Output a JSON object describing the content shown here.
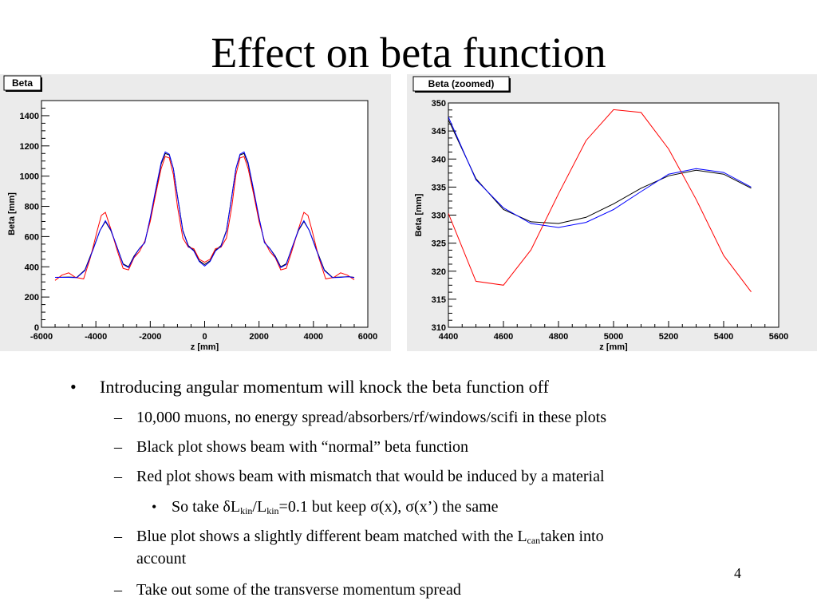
{
  "slide": {
    "title": "Effect on beta function",
    "page_number": "4",
    "bullets": {
      "b1": "Introducing angular momentum will knock the beta function off",
      "b2a": "10,000 muons, no energy spread/absorbers/rf/windows/scifi in these plots",
      "b2b": "Black plot shows beam with “normal” beta function",
      "b2c": "Red plot shows beam with mismatch that would be induced by a material",
      "b3_prefix": "So take δL",
      "b3_sub1": "kin",
      "b3_mid": "/L",
      "b3_sub2": "kin",
      "b3_suffix": "=0.1 but keep σ(x), σ(x’) the same",
      "b2d_prefix": "Blue plot shows a slightly different beam matched with the L",
      "b2d_sub": "can",
      "b2d_suffix": "taken into",
      "b2d_line2": "account",
      "b2e": "Take out some of the transverse momentum spread",
      "marker_round": "•",
      "marker_dash": "–"
    }
  },
  "colors": {
    "black_series": "#000000",
    "red_series": "#ff0000",
    "blue_series": "#0000ff",
    "pad_bg": "#ebebeb"
  },
  "chart_data": [
    {
      "type": "line",
      "title": "Beta",
      "xlabel": "z [mm]",
      "ylabel": "Beta [mm]",
      "xlim": [
        -6000,
        6000
      ],
      "ylim": [
        0,
        1500
      ],
      "xticks": [
        -6000,
        -4000,
        -2000,
        0,
        2000,
        4000,
        6000
      ],
      "yticks": [
        0,
        200,
        400,
        600,
        800,
        1000,
        1200,
        1400
      ],
      "xtick_labels": [
        "-6000",
        "-4000",
        "-2000",
        "0",
        "2000",
        "4000",
        "6000"
      ],
      "ytick_labels": [
        "0",
        "200",
        "400",
        "600",
        "800",
        "1000",
        "1200",
        "1400"
      ],
      "series": [
        {
          "color": "#000000",
          "x": [
            -5500,
            -5000,
            -4700,
            -4400,
            -4100,
            -3850,
            -3650,
            -3450,
            -3200,
            -3000,
            -2800,
            -2600,
            -2400,
            -2200,
            -2000,
            -1800,
            -1600,
            -1450,
            -1300,
            -1150,
            -1000,
            -800,
            -600,
            -400,
            -200,
            0,
            200,
            400,
            600,
            800,
            1000,
            1150,
            1300,
            1450,
            1600,
            1800,
            2000,
            2200,
            2400,
            2600,
            2800,
            3000,
            3200,
            3450,
            3650,
            3850,
            4100,
            4400,
            4700,
            5000,
            5300,
            5500
          ],
          "y": [
            330,
            332,
            330,
            380,
            520,
            640,
            700,
            640,
            520,
            420,
            400,
            470,
            520,
            560,
            720,
            900,
            1080,
            1150,
            1140,
            1050,
            870,
            640,
            540,
            510,
            440,
            415,
            440,
            510,
            540,
            640,
            870,
            1050,
            1140,
            1150,
            1080,
            900,
            720,
            560,
            520,
            470,
            400,
            420,
            520,
            640,
            700,
            640,
            520,
            380,
            330,
            332,
            335,
            330
          ]
        },
        {
          "color": "#ff0000",
          "x": [
            -5500,
            -5250,
            -5000,
            -4750,
            -4450,
            -4200,
            -3950,
            -3800,
            -3650,
            -3450,
            -3200,
            -3000,
            -2800,
            -2600,
            -2400,
            -2200,
            -2000,
            -1800,
            -1600,
            -1450,
            -1300,
            -1150,
            -1000,
            -800,
            -600,
            -400,
            -200,
            0,
            200,
            400,
            600,
            800,
            1000,
            1150,
            1300,
            1450,
            1600,
            1800,
            2000,
            2200,
            2400,
            2600,
            2800,
            3000,
            3200,
            3450,
            3650,
            3800,
            3950,
            4200,
            4450,
            4750,
            5000,
            5250,
            5500
          ],
          "y": [
            310,
            345,
            360,
            330,
            320,
            460,
            640,
            740,
            760,
            650,
            500,
            390,
            380,
            460,
            500,
            570,
            700,
            880,
            1050,
            1130,
            1120,
            1010,
            800,
            590,
            530,
            520,
            450,
            430,
            450,
            520,
            530,
            590,
            800,
            1010,
            1120,
            1130,
            1050,
            880,
            700,
            570,
            500,
            460,
            380,
            390,
            500,
            650,
            760,
            740,
            640,
            460,
            320,
            330,
            360,
            345,
            315
          ]
        },
        {
          "color": "#0000ff",
          "x": [
            -5500,
            -5000,
            -4700,
            -4400,
            -4100,
            -3850,
            -3650,
            -3450,
            -3200,
            -3000,
            -2800,
            -2600,
            -2400,
            -2200,
            -2000,
            -1800,
            -1600,
            -1450,
            -1300,
            -1150,
            -1000,
            -800,
            -600,
            -400,
            -200,
            0,
            200,
            400,
            600,
            800,
            1000,
            1150,
            1300,
            1450,
            1600,
            1800,
            2000,
            2200,
            2400,
            2600,
            2800,
            3000,
            3200,
            3450,
            3650,
            3850,
            4100,
            4400,
            4700,
            5000,
            5300,
            5500
          ],
          "y": [
            330,
            330,
            328,
            375,
            515,
            640,
            705,
            645,
            520,
            415,
            395,
            465,
            520,
            560,
            725,
            910,
            1090,
            1160,
            1145,
            1050,
            865,
            635,
            535,
            505,
            435,
            405,
            435,
            505,
            535,
            635,
            865,
            1050,
            1145,
            1160,
            1090,
            910,
            725,
            560,
            520,
            465,
            395,
            415,
            520,
            645,
            705,
            640,
            515,
            375,
            328,
            330,
            335,
            328
          ]
        }
      ]
    },
    {
      "type": "line",
      "title": "Beta (zoomed)",
      "xlabel": "z [mm]",
      "ylabel": "Beta [mm]",
      "xlim": [
        4400,
        5600
      ],
      "ylim": [
        310,
        350
      ],
      "xticks": [
        4400,
        4600,
        4800,
        5000,
        5200,
        5400,
        5600
      ],
      "yticks": [
        310,
        315,
        320,
        325,
        330,
        335,
        340,
        345,
        350
      ],
      "xtick_labels": [
        "4400",
        "4600",
        "4800",
        "5000",
        "5200",
        "5400",
        "5600"
      ],
      "ytick_labels": [
        "310",
        "315",
        "320",
        "325",
        "330",
        "335",
        "340",
        "345",
        "350"
      ],
      "series": [
        {
          "color": "#000000",
          "x": [
            4400,
            4500,
            4600,
            4700,
            4800,
            4900,
            5000,
            5100,
            5200,
            5300,
            5400,
            5500
          ],
          "y": [
            347,
            336.5,
            331,
            328.8,
            328.5,
            329.6,
            332,
            334.8,
            337,
            338,
            337.3,
            334.8
          ]
        },
        {
          "color": "#ff0000",
          "x": [
            4400,
            4500,
            4600,
            4700,
            4800,
            4900,
            5000,
            5100,
            5200,
            5300,
            5400,
            5500
          ],
          "y": [
            330.3,
            318.2,
            317.5,
            323.8,
            333.8,
            343.3,
            348.8,
            348.3,
            341.8,
            332.8,
            322.8,
            316.3
          ]
        },
        {
          "color": "#0000ff",
          "x": [
            4400,
            4500,
            4600,
            4700,
            4800,
            4900,
            5000,
            5100,
            5200,
            5300,
            5400,
            5500
          ],
          "y": [
            347.5,
            336.3,
            331.3,
            328.5,
            327.8,
            328.7,
            331,
            334.2,
            337.3,
            338.3,
            337.6,
            335
          ]
        }
      ]
    }
  ]
}
